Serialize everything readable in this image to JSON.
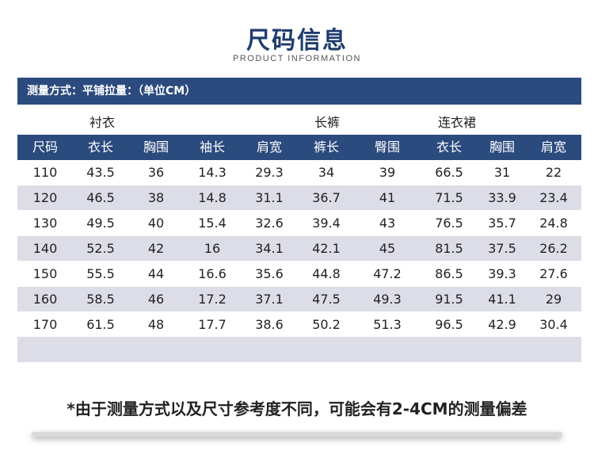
{
  "title": "尺码信息",
  "subtitle": "PRODUCT INFORMATION",
  "method": "测量方式：平铺拉量：（单位CM）",
  "groups": {
    "shirt": "衬衣",
    "pants": "长裤",
    "dress": "连衣裙"
  },
  "headers": [
    "尺码",
    "衣长",
    "胸围",
    "袖长",
    "肩宽",
    "裤长",
    "臀围",
    "衣长",
    "胸围",
    "肩宽"
  ],
  "rows": [
    [
      "110",
      "43.5",
      "36",
      "14.3",
      "29.3",
      "34",
      "39",
      "66.5",
      "31",
      "22"
    ],
    [
      "120",
      "46.5",
      "38",
      "14.8",
      "31.1",
      "36.7",
      "41",
      "71.5",
      "33.9",
      "23.4"
    ],
    [
      "130",
      "49.5",
      "40",
      "15.4",
      "32.6",
      "39.4",
      "43",
      "76.5",
      "35.7",
      "24.8"
    ],
    [
      "140",
      "52.5",
      "42",
      "16",
      "34.1",
      "42.1",
      "45",
      "81.5",
      "37.5",
      "26.2"
    ],
    [
      "150",
      "55.5",
      "44",
      "16.6",
      "35.6",
      "44.8",
      "47.2",
      "86.5",
      "39.3",
      "27.6"
    ],
    [
      "160",
      "58.5",
      "46",
      "17.2",
      "37.1",
      "47.5",
      "49.3",
      "91.5",
      "41.1",
      "29"
    ],
    [
      "170",
      "61.5",
      "48",
      "17.7",
      "38.6",
      "50.2",
      "51.3",
      "96.5",
      "42.9",
      "30.4"
    ]
  ],
  "footnote": "*由于测量方式以及尺寸参考度不同，可能会有2-4CM的测量偏差",
  "colors": {
    "header_bg": "#2b4a7e",
    "alt_row_bg": "#dcdde6",
    "title": "#1f3d6e"
  }
}
